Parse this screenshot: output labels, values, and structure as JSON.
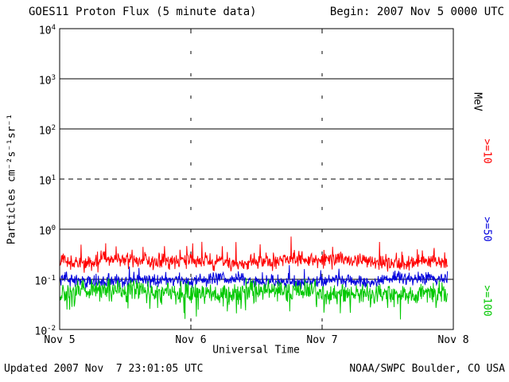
{
  "header": {
    "title": "GOES11 Proton Flux (5 minute data)",
    "begin": "Begin: 2007 Nov 5 0000 UTC"
  },
  "footer": {
    "updated": "Updated 2007 Nov  7 23:01:05 UTC",
    "credit": "NOAA/SWPC Boulder, CO USA"
  },
  "chart_data": {
    "type": "line",
    "title": "GOES11 Proton Flux (5 minute data)",
    "xlabel": "Universal Time",
    "ylabel": "Particles cm⁻²s⁻¹sr⁻¹",
    "x_ticks": [
      "Nov 5",
      "Nov 6",
      "Nov 7",
      "Nov 8"
    ],
    "x_range_days": 3,
    "samples_per_day": 288,
    "data_end_fraction": 0.986,
    "y_scale": "log",
    "ylim": [
      0.01,
      10000
    ],
    "y_tick_base": "10",
    "y_tick_exponents": [
      4,
      3,
      2,
      1,
      0,
      -1,
      -2
    ],
    "grid": {
      "solid_decade_exponents": [
        3,
        2,
        0,
        -1
      ],
      "dashed_decade_exponents": [
        1
      ],
      "dashed_vertical_days": [
        1,
        2
      ]
    },
    "right_axis": {
      "unit_label": "MeV",
      "thresholds": [
        {
          "label": ">=10",
          "color": "#ff0000"
        },
        {
          "label": ">=50",
          "color": "#0000dd"
        },
        {
          "label": ">=100",
          "color": "#00c800"
        }
      ]
    },
    "series": [
      {
        "id": "p10",
        "name": ">=10 MeV",
        "color": "#ff0000",
        "baseline_flux": 0.23,
        "log_sigma": 0.11,
        "spike_prob": 0.04,
        "spike_mag": 0.25
      },
      {
        "id": "p50",
        "name": ">=50 MeV",
        "color": "#0000dd",
        "baseline_flux": 0.1,
        "log_sigma": 0.09,
        "spike_prob": 0.02,
        "spike_mag": 0.2
      },
      {
        "id": "p100",
        "name": ">=100 MeV",
        "color": "#00c800",
        "baseline_flux": 0.055,
        "log_sigma": 0.15,
        "spike_prob": 0.05,
        "spike_mag": -0.25
      }
    ]
  }
}
